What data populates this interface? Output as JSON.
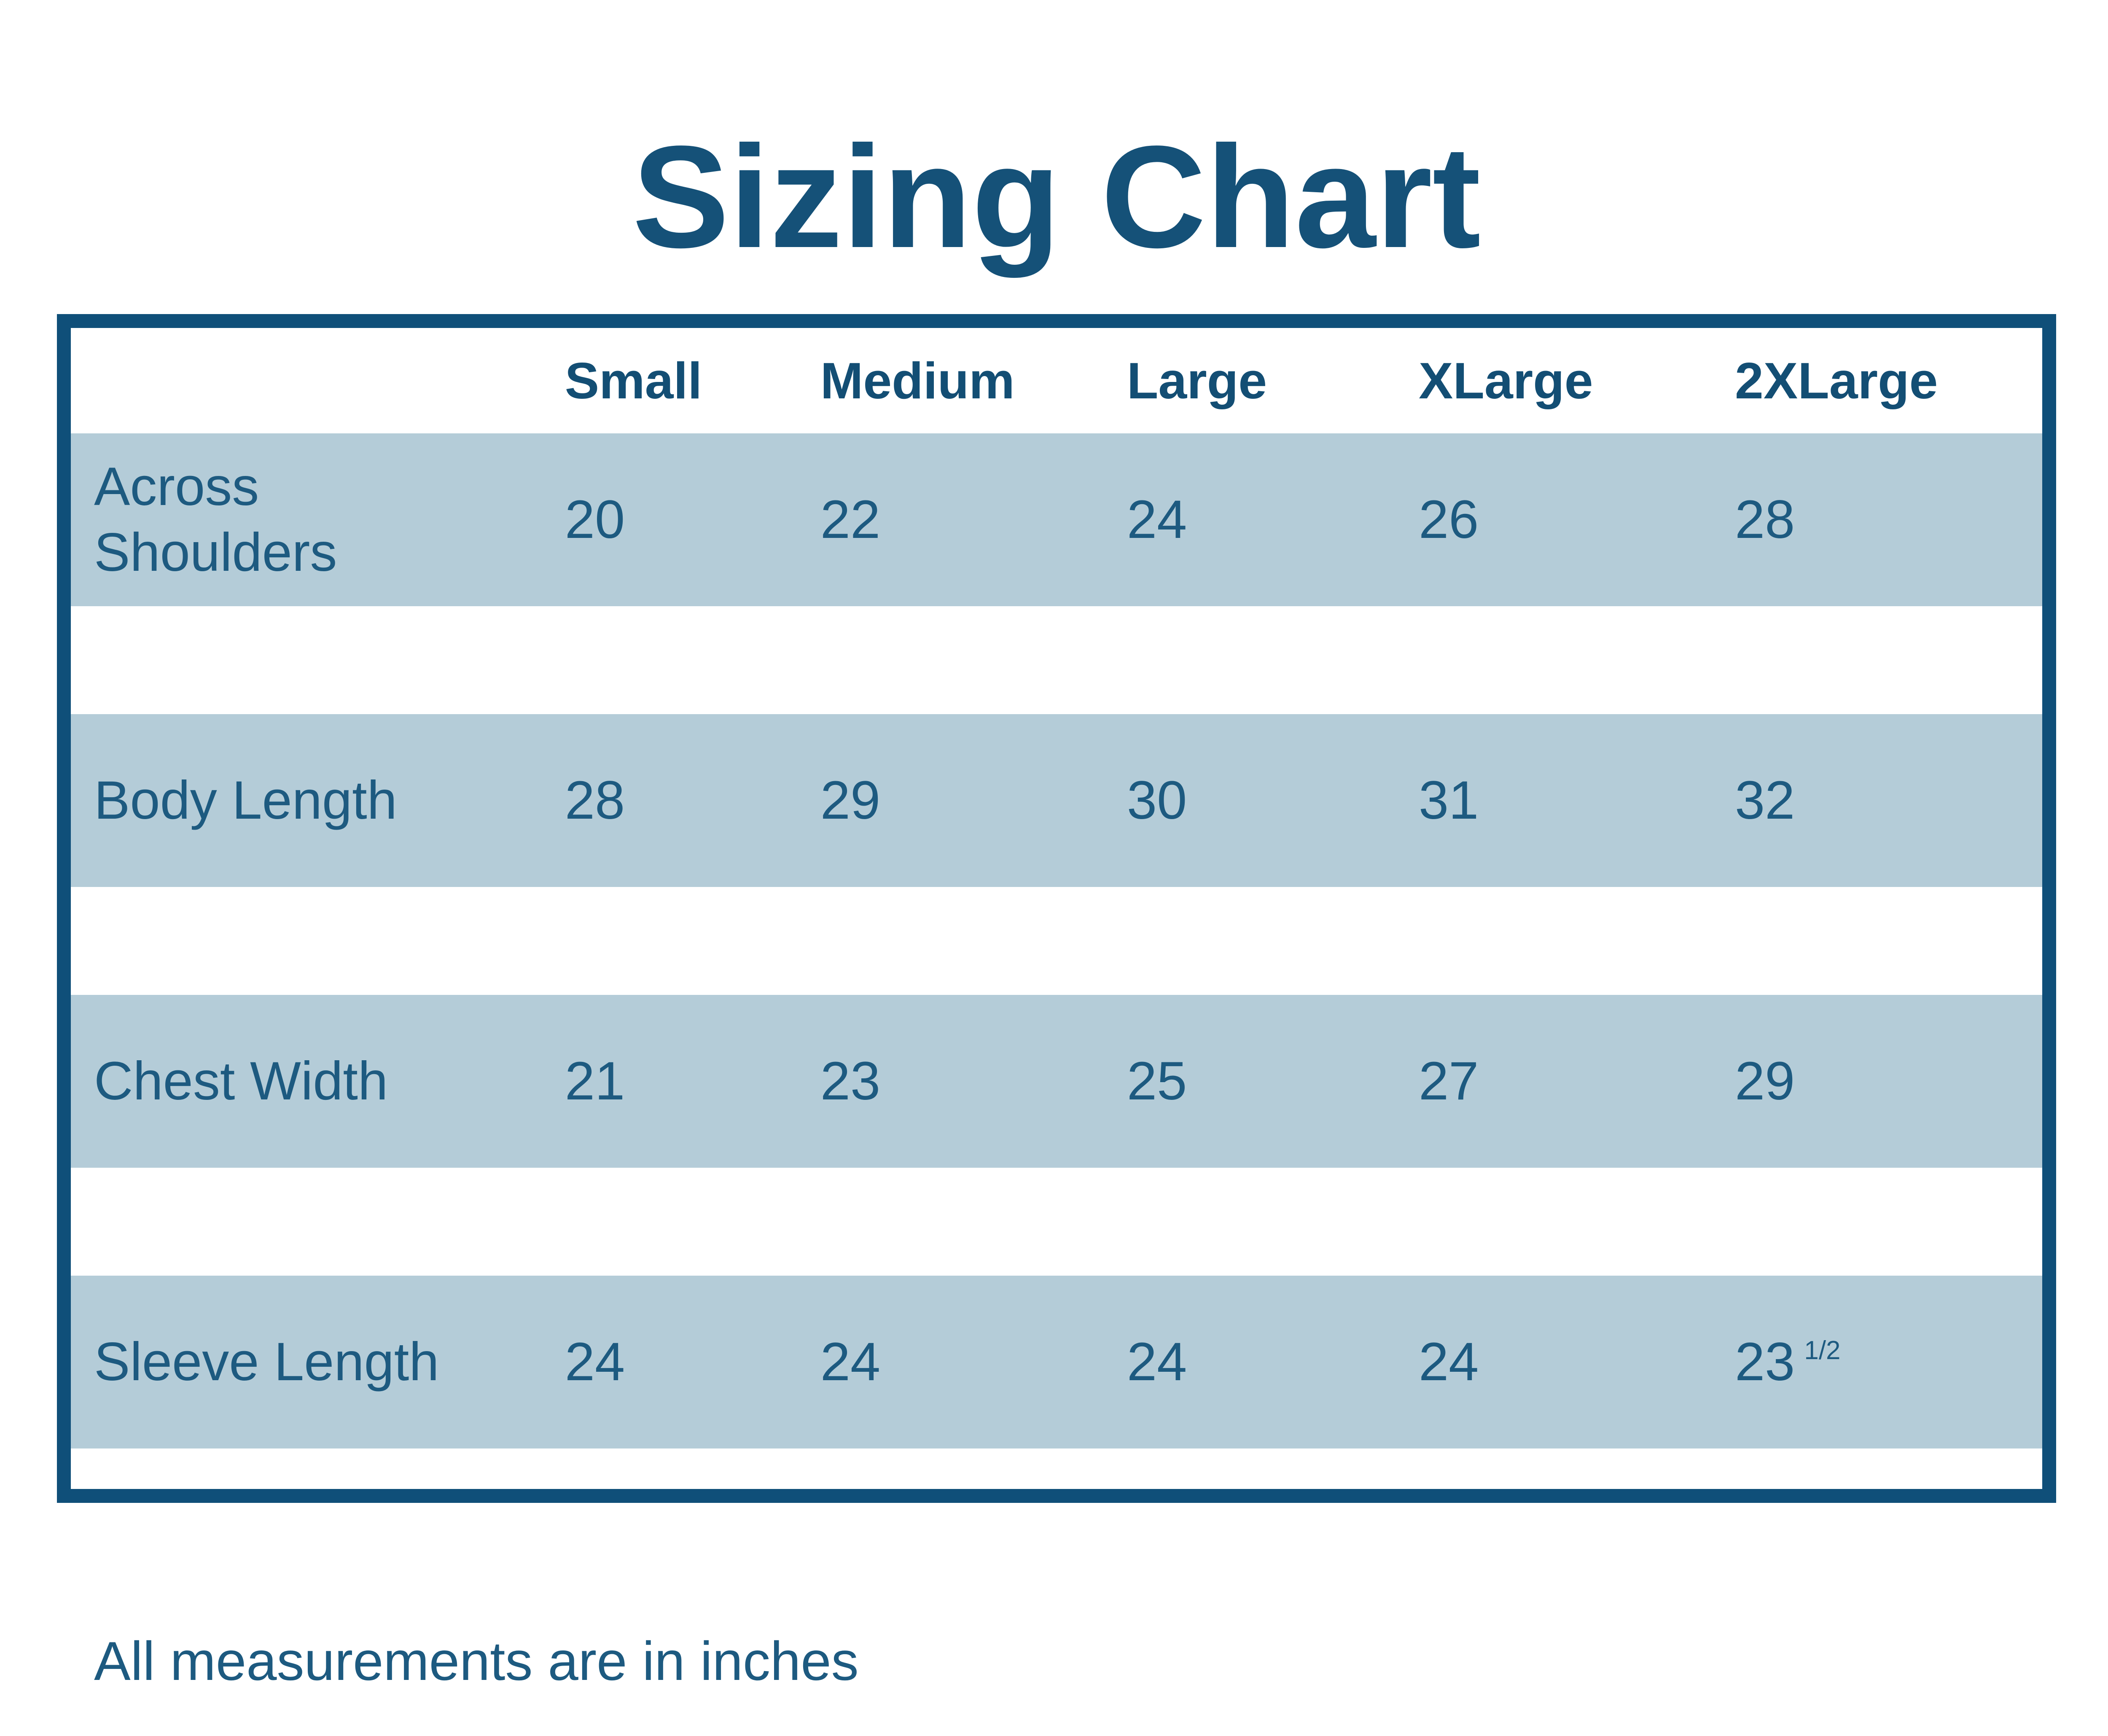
{
  "title": "Sizing Chart",
  "colors": {
    "border_blue": "#0f4f79",
    "band_blue": "#b4ccd8",
    "text_blue": "#1d5a80",
    "heading_blue": "#134e74",
    "background": "#ffffff"
  },
  "chart_data": {
    "type": "table",
    "title": "Sizing Chart",
    "columns": [
      "Small",
      "Medium",
      "Large",
      "XLarge",
      "2XLarge"
    ],
    "rows": [
      {
        "label": "Across Shoulders",
        "values": [
          "20",
          "22",
          "24",
          "26",
          "28"
        ]
      },
      {
        "label": "Body Length",
        "values": [
          "28",
          "29",
          "30",
          "31",
          "32"
        ]
      },
      {
        "label": "Chest Width",
        "values": [
          "21",
          "23",
          "25",
          "27",
          "29"
        ]
      },
      {
        "label": "Sleeve Length",
        "values": [
          "24",
          "24",
          "24",
          "24",
          "23"
        ],
        "last_value_fraction": "1/2"
      }
    ],
    "units_note": "All measurements are in inches"
  }
}
